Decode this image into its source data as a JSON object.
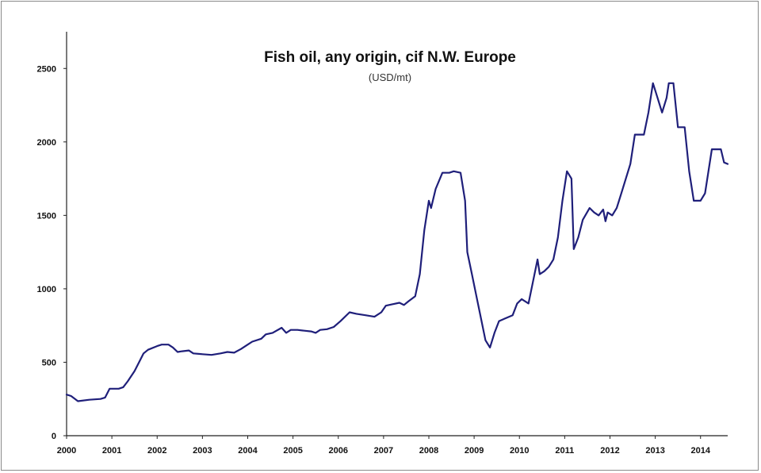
{
  "chart_data": {
    "type": "line",
    "title": "Fish oil, any origin, cif N.W. Europe",
    "subtitle": "(USD/mt)",
    "xlabel": "",
    "ylabel": "",
    "xlim": [
      2000,
      2014.6
    ],
    "ylim": [
      0,
      2750
    ],
    "x_ticks": [
      "2000",
      "2001",
      "2002",
      "2003",
      "2004",
      "2005",
      "2006",
      "2007",
      "2008",
      "2009",
      "2010",
      "2011",
      "2012",
      "2013",
      "2014"
    ],
    "y_ticks": [
      "0",
      "500",
      "1000",
      "1500",
      "2000",
      "2500"
    ],
    "grid": false,
    "legend": "none",
    "line_color": "#1f1f7a",
    "series": [
      {
        "values": [
          [
            2000.0,
            280
          ],
          [
            2000.1,
            270
          ],
          [
            2000.25,
            235
          ],
          [
            2000.5,
            245
          ],
          [
            2000.75,
            250
          ],
          [
            2000.85,
            260
          ],
          [
            2000.95,
            320
          ],
          [
            2001.15,
            320
          ],
          [
            2001.25,
            330
          ],
          [
            2001.35,
            370
          ],
          [
            2001.5,
            440
          ],
          [
            2001.6,
            500
          ],
          [
            2001.7,
            560
          ],
          [
            2001.8,
            585
          ],
          [
            2002.0,
            610
          ],
          [
            2002.1,
            620
          ],
          [
            2002.25,
            620
          ],
          [
            2002.35,
            600
          ],
          [
            2002.45,
            570
          ],
          [
            2002.55,
            575
          ],
          [
            2002.7,
            580
          ],
          [
            2002.8,
            560
          ],
          [
            2003.0,
            555
          ],
          [
            2003.2,
            550
          ],
          [
            2003.4,
            560
          ],
          [
            2003.55,
            570
          ],
          [
            2003.7,
            565
          ],
          [
            2003.85,
            590
          ],
          [
            2004.0,
            620
          ],
          [
            2004.1,
            640
          ],
          [
            2004.3,
            660
          ],
          [
            2004.4,
            690
          ],
          [
            2004.55,
            700
          ],
          [
            2004.75,
            735
          ],
          [
            2004.85,
            700
          ],
          [
            2004.95,
            720
          ],
          [
            2005.1,
            720
          ],
          [
            2005.25,
            715
          ],
          [
            2005.4,
            710
          ],
          [
            2005.5,
            700
          ],
          [
            2005.6,
            720
          ],
          [
            2005.75,
            725
          ],
          [
            2005.9,
            740
          ],
          [
            2006.05,
            780
          ],
          [
            2006.25,
            840
          ],
          [
            2006.4,
            830
          ],
          [
            2006.6,
            820
          ],
          [
            2006.8,
            810
          ],
          [
            2006.95,
            840
          ],
          [
            2007.05,
            885
          ],
          [
            2007.2,
            895
          ],
          [
            2007.35,
            905
          ],
          [
            2007.45,
            890
          ],
          [
            2007.55,
            915
          ],
          [
            2007.7,
            950
          ],
          [
            2007.8,
            1100
          ],
          [
            2007.9,
            1400
          ],
          [
            2008.0,
            1600
          ],
          [
            2008.05,
            1550
          ],
          [
            2008.15,
            1680
          ],
          [
            2008.3,
            1790
          ],
          [
            2008.45,
            1790
          ],
          [
            2008.55,
            1800
          ],
          [
            2008.7,
            1790
          ],
          [
            2008.8,
            1600
          ],
          [
            2008.85,
            1250
          ],
          [
            2008.95,
            1100
          ],
          [
            2009.05,
            950
          ],
          [
            2009.15,
            800
          ],
          [
            2009.25,
            650
          ],
          [
            2009.35,
            600
          ],
          [
            2009.45,
            700
          ],
          [
            2009.55,
            780
          ],
          [
            2009.7,
            800
          ],
          [
            2009.85,
            820
          ],
          [
            2009.95,
            900
          ],
          [
            2010.05,
            930
          ],
          [
            2010.2,
            900
          ],
          [
            2010.3,
            1050
          ],
          [
            2010.4,
            1200
          ],
          [
            2010.45,
            1100
          ],
          [
            2010.55,
            1120
          ],
          [
            2010.65,
            1150
          ],
          [
            2010.75,
            1200
          ],
          [
            2010.85,
            1350
          ],
          [
            2010.95,
            1600
          ],
          [
            2011.05,
            1800
          ],
          [
            2011.15,
            1750
          ],
          [
            2011.2,
            1270
          ],
          [
            2011.3,
            1350
          ],
          [
            2011.4,
            1470
          ],
          [
            2011.55,
            1550
          ],
          [
            2011.65,
            1520
          ],
          [
            2011.75,
            1500
          ],
          [
            2011.85,
            1540
          ],
          [
            2011.9,
            1460
          ],
          [
            2011.95,
            1520
          ],
          [
            2012.05,
            1500
          ],
          [
            2012.15,
            1550
          ],
          [
            2012.25,
            1650
          ],
          [
            2012.35,
            1750
          ],
          [
            2012.45,
            1850
          ],
          [
            2012.55,
            2050
          ],
          [
            2012.65,
            2050
          ],
          [
            2012.75,
            2050
          ],
          [
            2012.85,
            2200
          ],
          [
            2012.95,
            2400
          ],
          [
            2013.05,
            2300
          ],
          [
            2013.15,
            2200
          ],
          [
            2013.25,
            2300
          ],
          [
            2013.3,
            2400
          ],
          [
            2013.4,
            2400
          ],
          [
            2013.5,
            2100
          ],
          [
            2013.65,
            2100
          ],
          [
            2013.75,
            1800
          ],
          [
            2013.85,
            1600
          ],
          [
            2014.0,
            1600
          ],
          [
            2014.1,
            1650
          ],
          [
            2014.25,
            1950
          ],
          [
            2014.45,
            1950
          ],
          [
            2014.52,
            1860
          ],
          [
            2014.6,
            1850
          ]
        ]
      }
    ]
  }
}
